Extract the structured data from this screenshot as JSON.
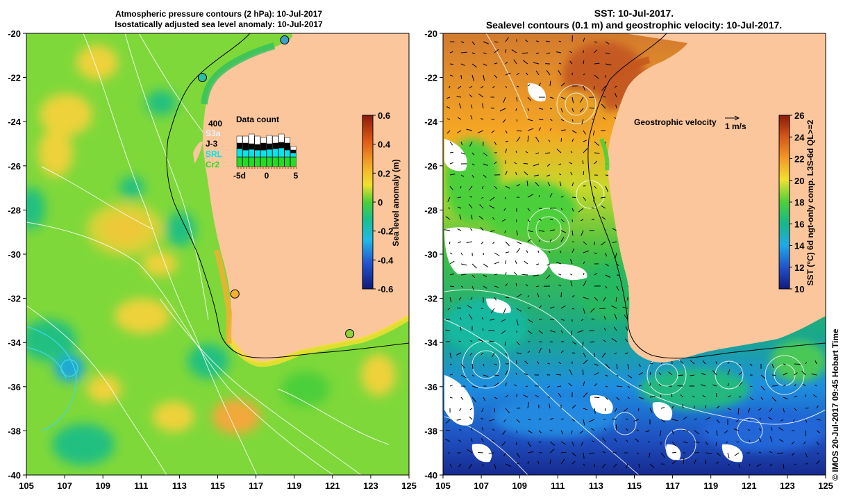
{
  "left_panel": {
    "title_line1": "Atmospheric pressure contours (2 hPa): 10-Jul-2017",
    "title_line2": "Isostatically adjusted sea level anomaly: 10-Jul-2017",
    "colorbar": {
      "label": "Sea level anomaly (m)",
      "ticks": [
        "0.6",
        "0.4",
        "0.2",
        "0",
        "-0.2",
        "-0.4",
        "-0.6"
      ],
      "range": [
        -0.6,
        0.6
      ]
    },
    "data_count": {
      "title": "Data count",
      "scale_label": "400",
      "legend": [
        {
          "name": "S3a",
          "color": "#ffffff"
        },
        {
          "name": "J-3",
          "color": "#000000"
        },
        {
          "name": "SRL",
          "color": "#00e5ee"
        },
        {
          "name": "Cr2",
          "color": "#22dd22"
        }
      ],
      "x_ticks": [
        "-5d",
        "0",
        "5"
      ]
    },
    "tide_gauges": [
      {
        "lon": 118.5,
        "lat": -20.3,
        "color": "#3aa0c8"
      },
      {
        "lon": 114.2,
        "lat": -22.0,
        "color": "#2bc0a8"
      },
      {
        "lon": 115.9,
        "lat": -31.8,
        "color": "#f0b030"
      },
      {
        "lon": 121.9,
        "lat": -33.6,
        "color": "#8fd43a"
      }
    ]
  },
  "right_panel": {
    "title_line1": "SST: 10-Jul-2017.",
    "title_line2": "Sealevel contours (0.1 m) and geostrophic velocity: 10-Jul-2017.",
    "velocity_key_label": "Geostrophic velocity",
    "velocity_key_unit": "1 m/s",
    "colorbar": {
      "label": "SST (°C) 6d ngt-only comp. L3S-6d QL>=2",
      "ticks": [
        "26",
        "24",
        "22",
        "20",
        "18",
        "16",
        "14",
        "12",
        "10"
      ],
      "range": [
        10,
        26
      ]
    }
  },
  "axes": {
    "x_ticks": [
      "105",
      "107",
      "109",
      "111",
      "113",
      "115",
      "117",
      "119",
      "121",
      "123",
      "125"
    ],
    "y_ticks": [
      "-20",
      "-22",
      "-24",
      "-26",
      "-28",
      "-30",
      "-32",
      "-34",
      "-36",
      "-38",
      "-40"
    ],
    "lon_range": [
      105,
      125
    ],
    "lat_range": [
      -40,
      -20
    ]
  },
  "footer": "© IMOS 20-Jul-2017 09:45 Hobart Time",
  "colors": {
    "land": "#fbc69c",
    "ocean_left": "#7ed83a",
    "ocean_right": "#3fb84a"
  }
}
